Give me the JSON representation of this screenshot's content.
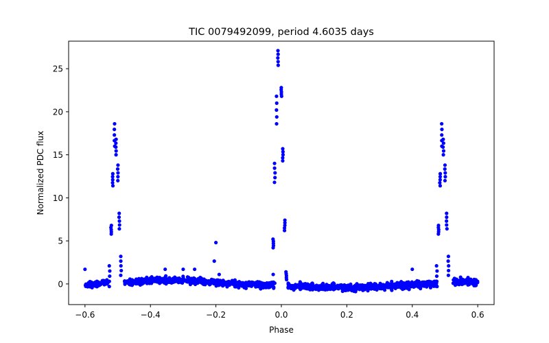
{
  "chart_data": {
    "type": "scatter",
    "title": "TIC 0079492099, period 4.6035 days",
    "xlabel": "Phase",
    "ylabel": "Normalized PDC flux",
    "xlim": [
      -0.65,
      0.65
    ],
    "ylim": [
      -2.4,
      28.2
    ],
    "xticks": [
      -0.6,
      -0.4,
      -0.2,
      0.0,
      0.2,
      0.4,
      0.6
    ],
    "xtick_labels": [
      "−0.6",
      "−0.4",
      "−0.2",
      "0.0",
      "0.2",
      "0.4",
      "0.6"
    ],
    "yticks": [
      0,
      5,
      10,
      15,
      20,
      25
    ],
    "ytick_labels": [
      "0",
      "5",
      "10",
      "15",
      "20",
      "25"
    ],
    "grid": false,
    "color": "#0000ff",
    "series": [
      {
        "baseline_segments": [
          {
            "x": [
              -0.6,
              -0.53
            ],
            "y": [
              -0.2,
              0.2
            ]
          },
          {
            "x": [
              -0.48,
              -0.4
            ],
            "y": [
              0.1,
              0.4
            ]
          },
          {
            "x": [
              -0.4,
              -0.3
            ],
            "y": [
              0.4,
              0.5
            ]
          },
          {
            "x": [
              -0.3,
              -0.2
            ],
            "y": [
              0.5,
              0.15
            ]
          },
          {
            "x": [
              -0.2,
              -0.1
            ],
            "y": [
              0.15,
              -0.05
            ]
          },
          {
            "x": [
              -0.1,
              -0.02
            ],
            "y": [
              -0.05,
              -0.15
            ]
          },
          {
            "x": [
              0.02,
              0.1
            ],
            "y": [
              -0.2,
              -0.35
            ]
          },
          {
            "x": [
              0.1,
              0.2
            ],
            "y": [
              -0.35,
              -0.45
            ]
          },
          {
            "x": [
              0.2,
              0.3
            ],
            "y": [
              -0.45,
              -0.3
            ]
          },
          {
            "x": [
              0.3,
              0.4
            ],
            "y": [
              -0.3,
              -0.1
            ]
          },
          {
            "x": [
              0.4,
              0.475
            ],
            "y": [
              -0.1,
              0.1
            ]
          },
          {
            "x": [
              0.525,
              0.6
            ],
            "y": [
              0.3,
              0.2
            ]
          }
        ],
        "flare_clusters": [
          {
            "x": -0.525,
            "y": [
              -0.3,
              2.1
            ]
          },
          {
            "x": -0.52,
            "y": [
              5.8,
              6.8
            ]
          },
          {
            "x": -0.515,
            "y": [
              11.4,
              12.8
            ]
          },
          {
            "x": -0.51,
            "y": [
              16.0,
              18.6
            ]
          },
          {
            "x": -0.505,
            "y": [
              15.0,
              16.8
            ]
          },
          {
            "x": -0.5,
            "y": [
              12.0,
              13.8
            ]
          },
          {
            "x": -0.495,
            "y": [
              6.4,
              8.2
            ]
          },
          {
            "x": -0.49,
            "y": [
              1.0,
              3.2
            ]
          },
          {
            "x": -0.025,
            "y": [
              4.2,
              5.2
            ]
          },
          {
            "x": -0.02,
            "y": [
              11.8,
              14.0
            ]
          },
          {
            "x": -0.015,
            "y": [
              18.6,
              21.8
            ]
          },
          {
            "x": -0.01,
            "y": [
              25.4,
              27.1
            ]
          },
          {
            "x": 0.0,
            "y": [
              21.8,
              22.8
            ]
          },
          {
            "x": 0.005,
            "y": [
              14.3,
              15.7
            ]
          },
          {
            "x": 0.01,
            "y": [
              6.2,
              7.4
            ]
          },
          {
            "x": 0.015,
            "y": [
              0.5,
              1.4
            ]
          },
          {
            "x": 0.475,
            "y": [
              -0.3,
              2.1
            ]
          },
          {
            "x": 0.48,
            "y": [
              5.8,
              6.8
            ]
          },
          {
            "x": 0.485,
            "y": [
              11.4,
              12.8
            ]
          },
          {
            "x": 0.49,
            "y": [
              16.0,
              18.6
            ]
          },
          {
            "x": 0.495,
            "y": [
              15.0,
              16.8
            ]
          },
          {
            "x": 0.5,
            "y": [
              12.0,
              13.8
            ]
          },
          {
            "x": 0.505,
            "y": [
              6.4,
              8.2
            ]
          },
          {
            "x": 0.51,
            "y": [
              1.0,
              3.2
            ]
          }
        ],
        "outliers": [
          {
            "x": -0.6,
            "y": 1.7
          },
          {
            "x": -0.355,
            "y": 1.7
          },
          {
            "x": -0.3,
            "y": 1.7
          },
          {
            "x": -0.265,
            "y": 1.7
          },
          {
            "x": -0.2,
            "y": 4.8
          },
          {
            "x": -0.205,
            "y": 2.65
          },
          {
            "x": -0.19,
            "y": 1.1
          },
          {
            "x": -0.025,
            "y": 1.1
          },
          {
            "x": 0.4,
            "y": 1.7
          }
        ]
      }
    ]
  }
}
